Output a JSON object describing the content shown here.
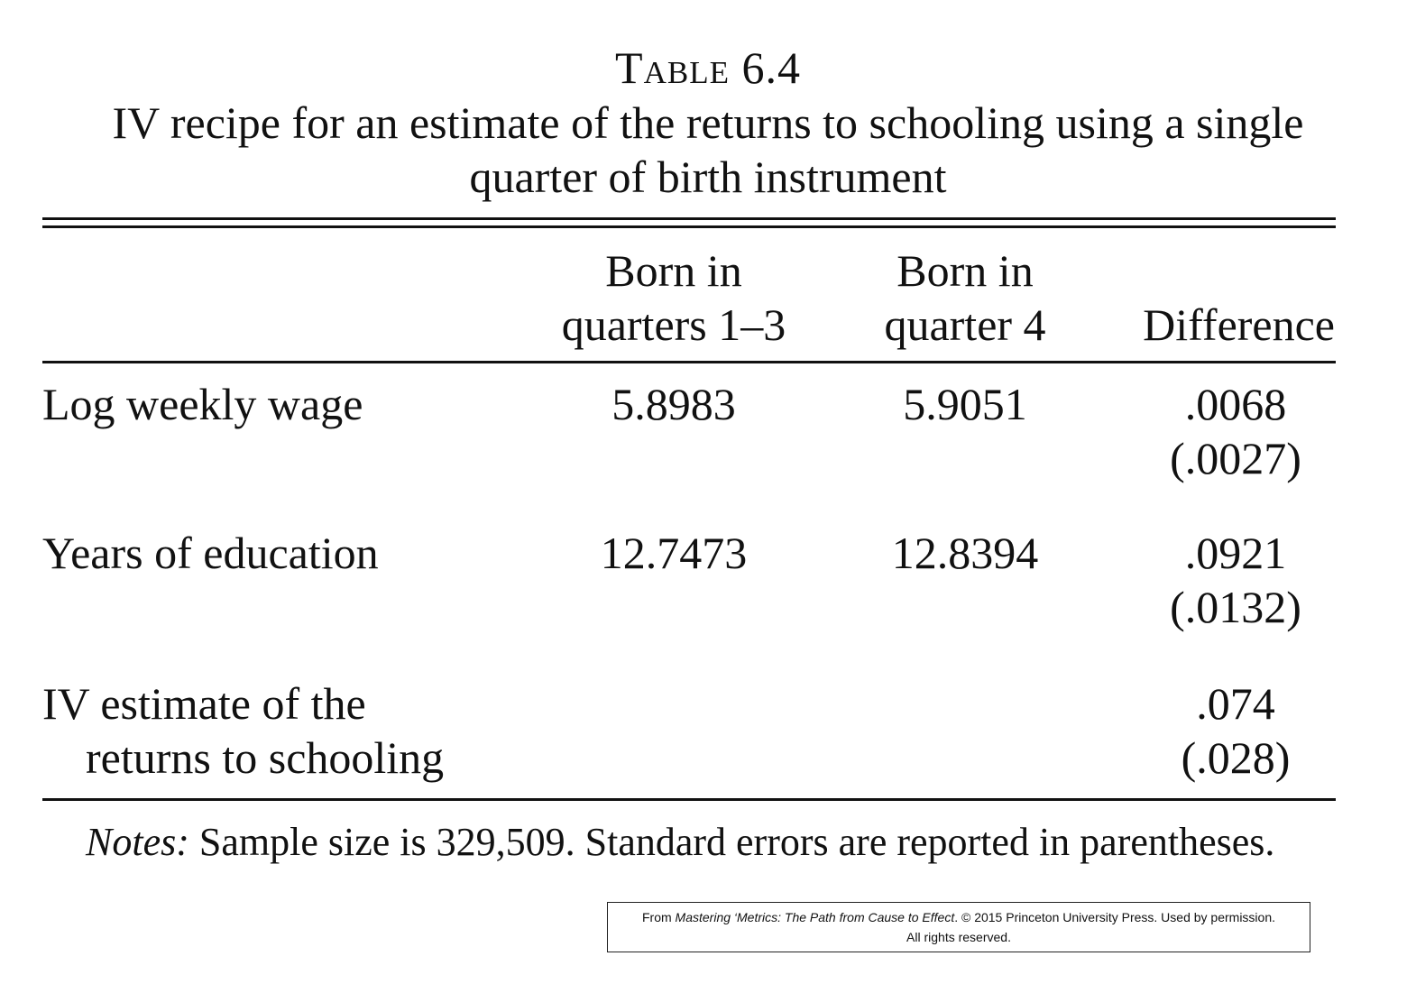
{
  "header": {
    "table_number": "Table 6.4",
    "title_line1": "IV recipe for an estimate of the returns to schooling using a single",
    "title_line2": "quarter of birth instrument"
  },
  "columns": [
    {
      "line1": "Born in",
      "line2": "quarters 1–3"
    },
    {
      "line1": "Born in",
      "line2": "quarter 4"
    },
    {
      "line1": "",
      "line2": "Difference"
    }
  ],
  "rows": [
    {
      "label_line1": "Log weekly wage",
      "label_line2": "",
      "q13": "5.8983",
      "q4": "5.9051",
      "diff": ".0068",
      "se": "(.0027)"
    },
    {
      "label_line1": "Years of education",
      "label_line2": "",
      "q13": "12.7473",
      "q4": "12.8394",
      "diff": ".0921",
      "se": "(.0132)"
    },
    {
      "label_line1": "IV estimate of the",
      "label_line2": "returns to schooling",
      "q13": "",
      "q4": "",
      "diff": ".074",
      "se": "(.028)"
    }
  ],
  "notes": {
    "label": "Notes:",
    "text": " Sample size is 329,509. Standard errors are reported in parentheses."
  },
  "credit": {
    "prefix": "From ",
    "book": "Mastering ‘Metrics: The Path from Cause to Effect",
    "suffix": ". © 2015 Princeton University Press. Used by permission.",
    "line2": "All rights reserved."
  }
}
